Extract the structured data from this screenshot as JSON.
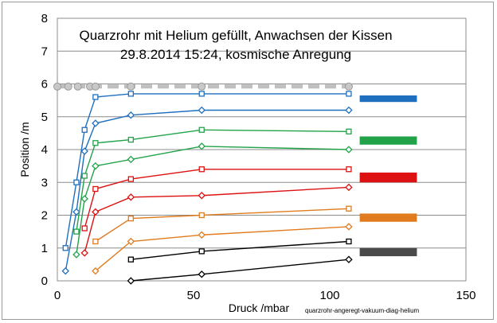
{
  "chart_data": {
    "type": "line",
    "title": "Quarzrohr mit Helium gefüllt, Anwachsen der Kissen",
    "subtitle": "29.8.2014  15:24, kosmische Anregung",
    "xlabel": "Druck /mbar",
    "ylabel": "Position /m",
    "note": "quarzrohr-angeregt-vakuum-diag-helium",
    "xlim": [
      0,
      150
    ],
    "ylim": [
      0,
      8
    ],
    "xticks": [
      0,
      50,
      100,
      150
    ],
    "yticks": [
      0,
      1,
      2,
      3,
      4,
      5,
      6,
      7,
      8
    ],
    "grid": "horizontal",
    "reference_line": {
      "color": "#bfbfbf",
      "y": 5.92,
      "x": [
        0,
        4,
        7.5,
        12,
        14,
        27,
        53,
        107
      ]
    },
    "series": [
      {
        "color": "#1f6fbf",
        "marker": "square",
        "x": [
          3,
          7,
          10,
          14,
          27,
          53,
          107
        ],
        "y": [
          1.0,
          3.0,
          4.6,
          5.6,
          5.7,
          5.7,
          5.7
        ]
      },
      {
        "color": "#1f6fbf",
        "marker": "diamond",
        "x": [
          3,
          7,
          10,
          14,
          27,
          53,
          107
        ],
        "y": [
          0.3,
          2.1,
          3.95,
          4.8,
          5.05,
          5.2,
          5.2
        ]
      },
      {
        "color": "#22a34a",
        "marker": "square",
        "x": [
          7,
          10,
          14,
          27,
          53,
          107
        ],
        "y": [
          1.5,
          3.2,
          4.2,
          4.3,
          4.6,
          4.55
        ]
      },
      {
        "color": "#22a34a",
        "marker": "diamond",
        "x": [
          7,
          10,
          14,
          27,
          53,
          107
        ],
        "y": [
          0.8,
          2.5,
          3.5,
          3.7,
          4.1,
          4.0
        ]
      },
      {
        "color": "#dd1111",
        "marker": "square",
        "x": [
          10,
          14,
          27,
          53,
          107
        ],
        "y": [
          1.6,
          2.8,
          3.1,
          3.4,
          3.4
        ]
      },
      {
        "color": "#dd1111",
        "marker": "diamond",
        "x": [
          10,
          14,
          27,
          53,
          107
        ],
        "y": [
          0.85,
          2.1,
          2.55,
          2.6,
          2.85
        ]
      },
      {
        "color": "#e07b1e",
        "marker": "square",
        "x": [
          14,
          27,
          53,
          107
        ],
        "y": [
          1.2,
          1.9,
          2.0,
          2.2
        ]
      },
      {
        "color": "#e07b1e",
        "marker": "diamond",
        "x": [
          14,
          27,
          53,
          107
        ],
        "y": [
          0.3,
          1.2,
          1.4,
          1.65
        ]
      },
      {
        "color": "#000000",
        "marker": "square",
        "x": [
          27,
          53,
          107
        ],
        "y": [
          0.65,
          0.9,
          1.2
        ]
      },
      {
        "color": "#000000",
        "marker": "diamond",
        "x": [
          27,
          53,
          107
        ],
        "y": [
          0.0,
          0.2,
          0.65
        ]
      }
    ],
    "color_bars": [
      {
        "color": "#1f6fbf",
        "y": [
          5.45,
          5.65
        ]
      },
      {
        "color": "#22a34a",
        "y": [
          4.15,
          4.4
        ]
      },
      {
        "color": "#dd1111",
        "y": [
          3.0,
          3.3
        ]
      },
      {
        "color": "#e07b1e",
        "y": [
          1.8,
          2.05
        ]
      },
      {
        "color": "#4a4a4a",
        "y": [
          0.75,
          1.0
        ]
      }
    ],
    "color_bar_x": [
      111,
      132
    ]
  }
}
